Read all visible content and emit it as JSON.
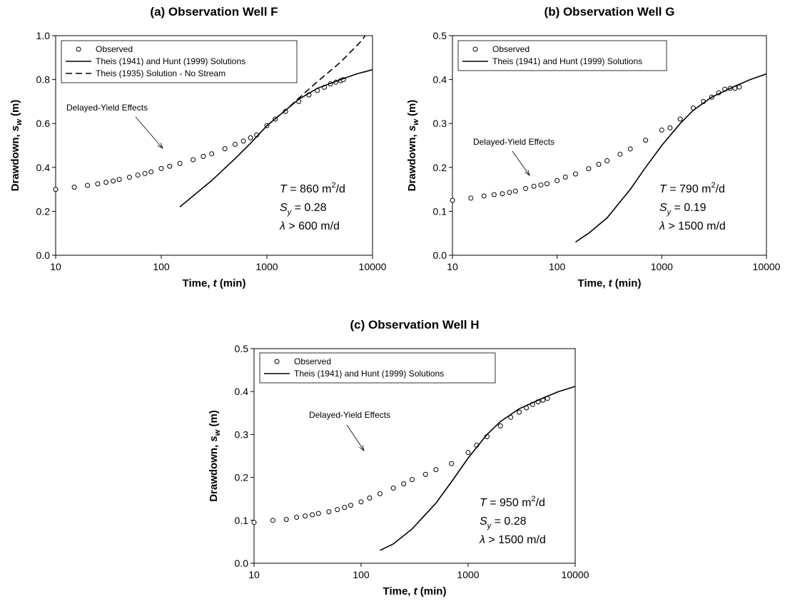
{
  "chart_data": [
    {
      "type": "scatter",
      "title": "(a) Observation Well F",
      "xlabel": {
        "text": "Time, ",
        "var": "t",
        "unit": " (min)"
      },
      "ylabel": {
        "text": "Drawdown, ",
        "var": "s",
        "sub": "w",
        "unit": " (m)"
      },
      "xscale": "log",
      "xlim": [
        10,
        10000
      ],
      "xticks": [
        10,
        100,
        1000,
        10000
      ],
      "ylim": [
        0,
        1
      ],
      "yticks": [
        {
          "value": 0,
          "label": "0.0"
        },
        0.2,
        0.4,
        0.6,
        0.8,
        {
          "value": 1,
          "label": "1.0"
        }
      ],
      "annotation": "Delayed-Yield Effects",
      "params": [
        {
          "var": "T",
          "text": " = 860 m",
          "sup": "2",
          "tail": "/d"
        },
        {
          "var": "S",
          "sub": "y",
          "text": " = 0.28"
        },
        {
          "var": "λ",
          "text": " > 600 m/d"
        }
      ],
      "series": [
        {
          "name": "Observed",
          "color": "#000000",
          "mode": "markers",
          "x": [
            10,
            15,
            20,
            25,
            30,
            35,
            40,
            50,
            60,
            70,
            80,
            100,
            120,
            150,
            200,
            250,
            300,
            400,
            500,
            600,
            700,
            800,
            1000,
            1200,
            1500,
            2000,
            2500,
            3000,
            3500,
            4000,
            4500,
            5000,
            5300
          ],
          "values": [
            0.3,
            0.31,
            0.318,
            0.325,
            0.332,
            0.338,
            0.345,
            0.355,
            0.365,
            0.372,
            0.38,
            0.395,
            0.405,
            0.418,
            0.435,
            0.45,
            0.462,
            0.485,
            0.505,
            0.52,
            0.535,
            0.548,
            0.59,
            0.62,
            0.655,
            0.7,
            0.73,
            0.75,
            0.765,
            0.78,
            0.788,
            0.795,
            0.8
          ]
        },
        {
          "name": "Theis (1941) and Hunt (1999) Solutions",
          "color": "#000000",
          "mode": "line",
          "dash": false,
          "x": [
            150,
            200,
            300,
            500,
            700,
            1000,
            1500,
            2000,
            3000,
            5000,
            7000,
            10000
          ],
          "values": [
            0.22,
            0.27,
            0.34,
            0.44,
            0.51,
            0.59,
            0.66,
            0.71,
            0.76,
            0.8,
            0.825,
            0.845
          ]
        },
        {
          "name": "Theis (1935) Solution - No Stream",
          "color": "#000000",
          "mode": "line",
          "dash": true,
          "x": [
            1000,
            1500,
            2000,
            3000,
            5000,
            8000,
            8500
          ],
          "values": [
            0.59,
            0.66,
            0.715,
            0.79,
            0.88,
            0.98,
            1.0
          ]
        }
      ]
    },
    {
      "type": "scatter",
      "title": "(b) Observation Well G",
      "xlabel": {
        "text": "Time, ",
        "var": "t",
        "unit": " (min)"
      },
      "ylabel": {
        "text": "Drawdown, ",
        "var": "s",
        "sub": "w",
        "unit": " (m)"
      },
      "xscale": "log",
      "xlim": [
        10,
        10000
      ],
      "xticks": [
        10,
        100,
        1000,
        10000
      ],
      "ylim": [
        0,
        0.5
      ],
      "yticks": [
        {
          "value": 0,
          "label": "0.0"
        },
        0.1,
        0.2,
        0.3,
        0.4,
        0.5
      ],
      "annotation": "Delayed-Yield Effects",
      "params": [
        {
          "var": "T",
          "text": " = 790 m",
          "sup": "2",
          "tail": "/d"
        },
        {
          "var": "S",
          "sub": "y",
          "text": " = 0.19"
        },
        {
          "var": "λ",
          "text": " > 1500 m/d"
        }
      ],
      "series": [
        {
          "name": "Observed",
          "color": "#000000",
          "mode": "markers",
          "x": [
            10,
            15,
            20,
            25,
            30,
            35,
            40,
            50,
            60,
            70,
            80,
            100,
            120,
            150,
            200,
            250,
            300,
            400,
            500,
            700,
            1000,
            1200,
            1500,
            2000,
            2500,
            3000,
            3500,
            4000,
            4500,
            5000,
            5500
          ],
          "values": [
            0.125,
            0.13,
            0.135,
            0.138,
            0.14,
            0.143,
            0.146,
            0.152,
            0.157,
            0.16,
            0.163,
            0.17,
            0.178,
            0.185,
            0.197,
            0.207,
            0.215,
            0.23,
            0.242,
            0.262,
            0.285,
            0.29,
            0.31,
            0.335,
            0.35,
            0.36,
            0.37,
            0.378,
            0.38,
            0.38,
            0.383
          ]
        },
        {
          "name": "Theis (1941) and Hunt (1999) Solutions",
          "color": "#000000",
          "mode": "line",
          "dash": false,
          "x": [
            150,
            200,
            300,
            500,
            700,
            1000,
            1500,
            2000,
            3000,
            5000,
            7000,
            10000
          ],
          "values": [
            0.03,
            0.05,
            0.085,
            0.15,
            0.2,
            0.25,
            0.3,
            0.33,
            0.36,
            0.385,
            0.4,
            0.413
          ]
        }
      ]
    },
    {
      "type": "scatter",
      "title": "(c) Observation Well H",
      "xlabel": {
        "text": "Time, ",
        "var": "t",
        "unit": " (min)"
      },
      "ylabel": {
        "text": "Drawdown, ",
        "var": "s",
        "sub": "w",
        "unit": " (m)"
      },
      "xscale": "log",
      "xlim": [
        10,
        10000
      ],
      "xticks": [
        10,
        100,
        1000,
        10000
      ],
      "ylim": [
        0,
        0.5
      ],
      "yticks": [
        {
          "value": 0,
          "label": "0.0"
        },
        0.1,
        0.2,
        0.3,
        0.4,
        0.5
      ],
      "annotation": "Delayed-Yield Effects",
      "params": [
        {
          "var": "T",
          "text": " = 950 m",
          "sup": "2",
          "tail": "/d"
        },
        {
          "var": "S",
          "sub": "y",
          "text": " = 0.28"
        },
        {
          "var": "λ",
          "text": " > 1500 m/d"
        }
      ],
      "series": [
        {
          "name": "Observed",
          "color": "#000000",
          "mode": "markers",
          "x": [
            10,
            15,
            20,
            25,
            30,
            35,
            40,
            50,
            60,
            70,
            80,
            100,
            120,
            150,
            200,
            250,
            300,
            400,
            500,
            700,
            1000,
            1200,
            1500,
            2000,
            2500,
            3000,
            3500,
            4000,
            4500,
            5000,
            5500
          ],
          "values": [
            0.095,
            0.1,
            0.102,
            0.107,
            0.11,
            0.113,
            0.116,
            0.12,
            0.125,
            0.13,
            0.135,
            0.143,
            0.152,
            0.162,
            0.175,
            0.185,
            0.195,
            0.207,
            0.218,
            0.232,
            0.258,
            0.275,
            0.295,
            0.32,
            0.34,
            0.352,
            0.362,
            0.37,
            0.376,
            0.38,
            0.384
          ]
        },
        {
          "name": "Theis (1941) and Hunt (1999) Solutions",
          "color": "#000000",
          "mode": "line",
          "dash": false,
          "x": [
            150,
            200,
            300,
            500,
            700,
            1000,
            1500,
            2000,
            3000,
            5000,
            7000,
            10000
          ],
          "values": [
            0.03,
            0.045,
            0.08,
            0.14,
            0.19,
            0.245,
            0.3,
            0.33,
            0.36,
            0.385,
            0.4,
            0.412
          ]
        }
      ]
    }
  ]
}
